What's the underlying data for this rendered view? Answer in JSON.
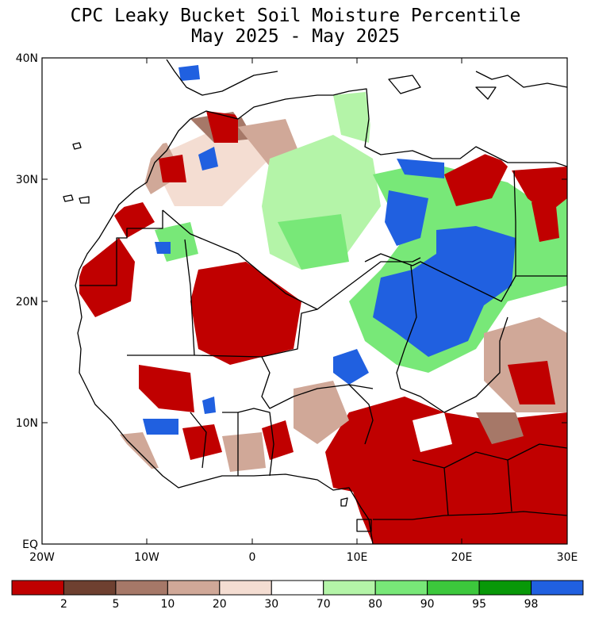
{
  "title": {
    "line1": "CPC Leaky Bucket Soil Moisture Percentile",
    "line2": "May 2025 - May 2025"
  },
  "map": {
    "lat_labels": [
      "40N",
      "30N",
      "20N",
      "10N",
      "EQ"
    ],
    "lon_labels": [
      "20W",
      "10W",
      "0",
      "10E",
      "20E",
      "30E"
    ],
    "lat_range": [
      0,
      40
    ],
    "lon_range": [
      -20,
      30
    ]
  },
  "colorbar": {
    "colors": [
      "#c00000",
      "#6e4030",
      "#a67868",
      "#d0a898",
      "#f4ddd2",
      "#ffffff",
      "#b4f4a8",
      "#78e878",
      "#3cc83c",
      "#089808",
      "#2060e0"
    ],
    "labels": [
      "2",
      "5",
      "10",
      "20",
      "30",
      "70",
      "80",
      "90",
      "95",
      "98"
    ]
  },
  "legend_categories": {
    "very_dry": "#c00000",
    "near_normal": "#ffffff",
    "wet": "#78e878",
    "very_wet": "#2060e0"
  }
}
